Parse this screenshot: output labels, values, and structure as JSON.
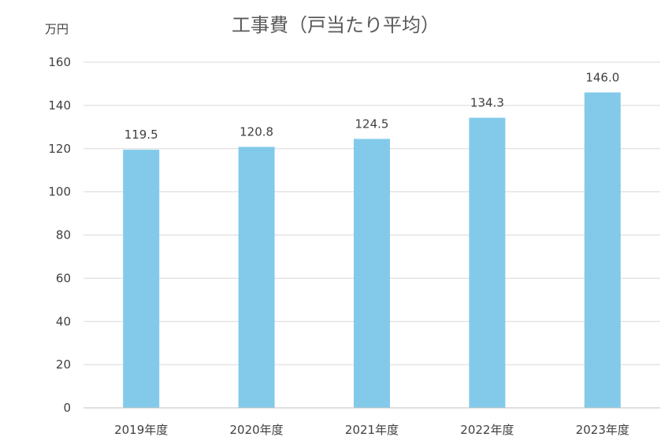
{
  "chart_data": {
    "type": "bar",
    "title": "工事費（戸当たり平均）",
    "ylabel": "万円",
    "categories": [
      "2019年度",
      "2020年度",
      "2021年度",
      "2022年度",
      "2023年度"
    ],
    "values": [
      119.5,
      120.8,
      124.5,
      134.3,
      146.0
    ],
    "value_labels": [
      "119.5",
      "120.8",
      "124.5",
      "134.3",
      "146.0"
    ],
    "ylim": [
      0,
      160
    ],
    "yticks": [
      0,
      20,
      40,
      60,
      80,
      100,
      120,
      140,
      160
    ],
    "grid": true,
    "legend": "none",
    "bar_color": "#83CAEA"
  }
}
